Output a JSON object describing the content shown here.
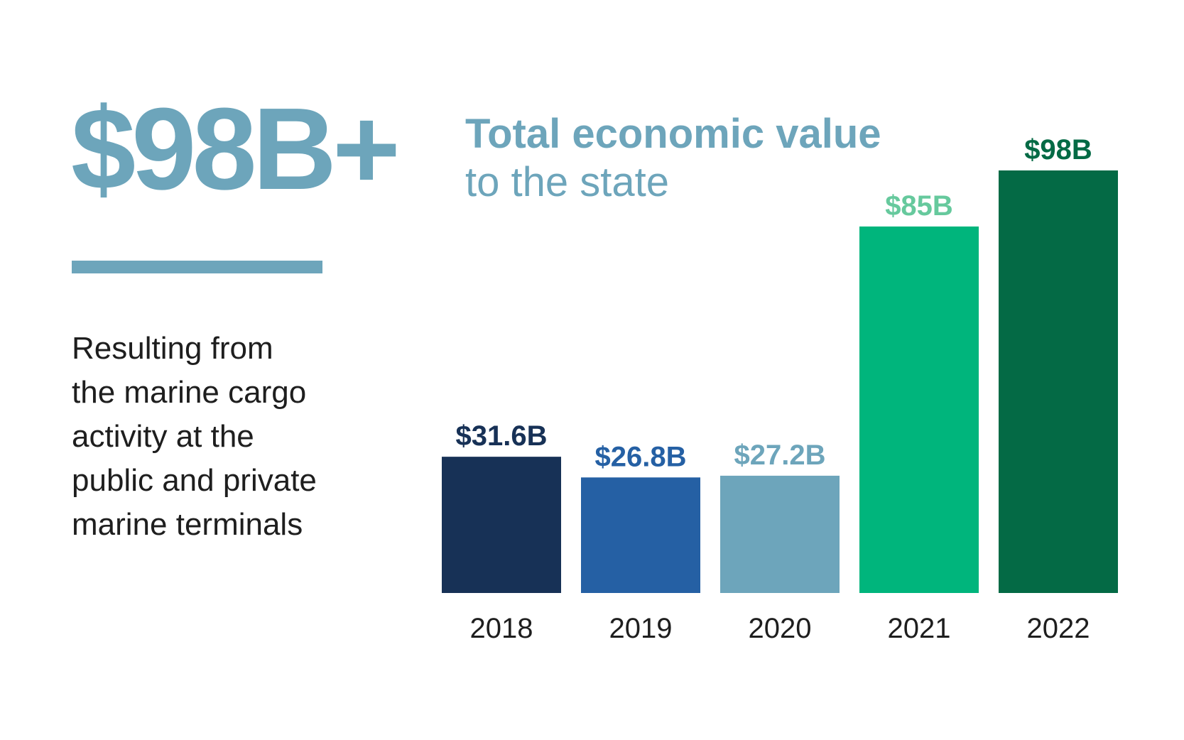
{
  "headline": "$98B+",
  "subtitle": {
    "line1": "Total economic value",
    "line2": "to the state"
  },
  "description": {
    "lines": [
      "Resulting from",
      "the marine cargo",
      "activity at the",
      "public and private",
      "marine terminals"
    ]
  },
  "colors": {
    "accent": "#6da5bb",
    "text": "#1e1e1e"
  },
  "chart_data": {
    "type": "bar",
    "categories": [
      "2018",
      "2019",
      "2020",
      "2021",
      "2022"
    ],
    "values": [
      31.6,
      26.8,
      27.2,
      85,
      98
    ],
    "data_labels": [
      "$31.6B",
      "$26.8B",
      "$27.2B",
      "$85B",
      "$98B"
    ],
    "bar_colors": [
      "#173156",
      "#2560a4",
      "#6da5bb",
      "#00b57c",
      "#046a45"
    ],
    "label_colors": [
      "#173156",
      "#2560a4",
      "#6da5bb",
      "#66c99d",
      "#046a45"
    ],
    "ylim": [
      0,
      98
    ],
    "grid": false,
    "legend": "none"
  }
}
